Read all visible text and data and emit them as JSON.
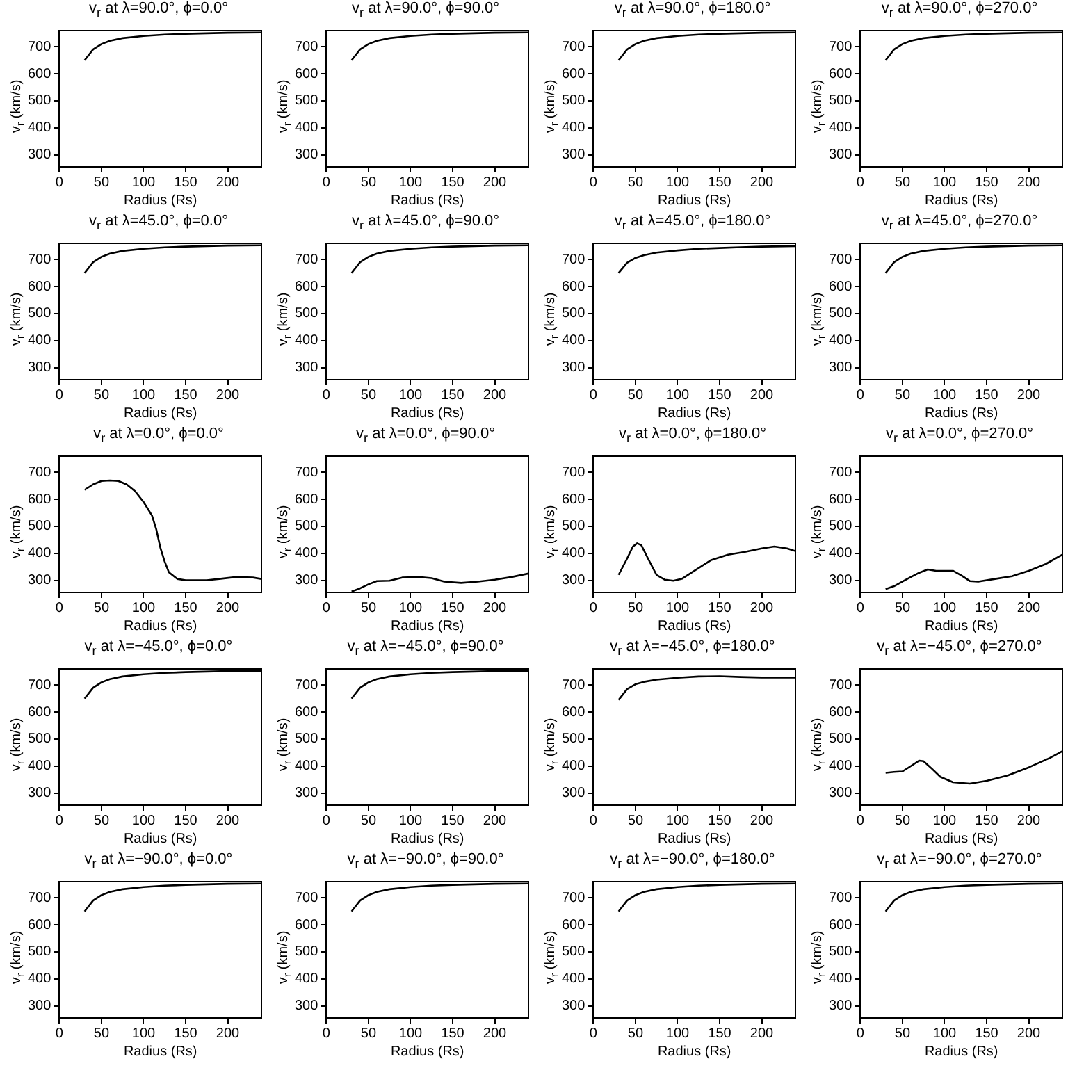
{
  "chart_data": [
    {
      "type": "line",
      "title": "v$_{r}$ at λ=90.0°, ϕ=0.0°",
      "xlabel": "Radius (Rs)",
      "ylabel": "v$_{r}$ (km/s)",
      "xlim": [
        0,
        240
      ],
      "ylim": [
        255,
        760
      ],
      "xticks": [
        0,
        50,
        100,
        150,
        200
      ],
      "yticks": [
        300,
        400,
        500,
        600,
        700
      ],
      "marker": "none",
      "x": [
        30,
        40,
        50,
        60,
        75,
        100,
        125,
        150,
        175,
        200,
        240
      ],
      "series": [
        {
          "color": "#000000",
          "values": [
            650,
            690,
            710,
            722,
            732,
            740,
            745,
            748,
            750,
            752,
            753
          ]
        }
      ]
    },
    {
      "type": "line",
      "title": "v$_{r}$ at λ=90.0°, ϕ=90.0°",
      "xlabel": "Radius (Rs)",
      "ylabel": "v$_{r}$ (km/s)",
      "xlim": [
        0,
        240
      ],
      "ylim": [
        255,
        760
      ],
      "xticks": [
        0,
        50,
        100,
        150,
        200
      ],
      "yticks": [
        300,
        400,
        500,
        600,
        700
      ],
      "marker": "none",
      "x": [
        30,
        40,
        50,
        60,
        75,
        100,
        125,
        150,
        175,
        200,
        240
      ],
      "series": [
        {
          "color": "#000000",
          "values": [
            650,
            690,
            710,
            722,
            732,
            740,
            745,
            748,
            750,
            752,
            753
          ]
        }
      ]
    },
    {
      "type": "line",
      "title": "v$_{r}$ at λ=90.0°, ϕ=180.0°",
      "xlabel": "Radius (Rs)",
      "ylabel": "v$_{r}$ (km/s)",
      "xlim": [
        0,
        240
      ],
      "ylim": [
        255,
        760
      ],
      "xticks": [
        0,
        50,
        100,
        150,
        200
      ],
      "yticks": [
        300,
        400,
        500,
        600,
        700
      ],
      "marker": "none",
      "x": [
        30,
        40,
        50,
        60,
        75,
        100,
        125,
        150,
        175,
        200,
        240
      ],
      "series": [
        {
          "color": "#000000",
          "values": [
            650,
            690,
            710,
            722,
            732,
            740,
            745,
            748,
            750,
            752,
            753
          ]
        }
      ]
    },
    {
      "type": "line",
      "title": "v$_{r}$ at λ=90.0°, ϕ=270.0°",
      "xlabel": "Radius (Rs)",
      "ylabel": "v$_{r}$ (km/s)",
      "xlim": [
        0,
        240
      ],
      "ylim": [
        255,
        760
      ],
      "xticks": [
        0,
        50,
        100,
        150,
        200
      ],
      "yticks": [
        300,
        400,
        500,
        600,
        700
      ],
      "marker": "none",
      "x": [
        30,
        40,
        50,
        60,
        75,
        100,
        125,
        150,
        175,
        200,
        240
      ],
      "series": [
        {
          "color": "#000000",
          "values": [
            650,
            690,
            710,
            722,
            732,
            740,
            745,
            748,
            750,
            752,
            753
          ]
        }
      ]
    },
    {
      "type": "line",
      "title": "v$_{r}$ at λ=45.0°, ϕ=0.0°",
      "xlabel": "Radius (Rs)",
      "ylabel": "v$_{r}$ (km/s)",
      "xlim": [
        0,
        240
      ],
      "ylim": [
        255,
        760
      ],
      "xticks": [
        0,
        50,
        100,
        150,
        200
      ],
      "yticks": [
        300,
        400,
        500,
        600,
        700
      ],
      "marker": "none",
      "x": [
        30,
        40,
        50,
        60,
        75,
        100,
        125,
        150,
        175,
        200,
        240
      ],
      "series": [
        {
          "color": "#000000",
          "values": [
            650,
            690,
            710,
            722,
            732,
            740,
            745,
            748,
            750,
            752,
            753
          ]
        }
      ]
    },
    {
      "type": "line",
      "title": "v$_{r}$ at λ=45.0°, ϕ=90.0°",
      "xlabel": "Radius (Rs)",
      "ylabel": "v$_{r}$ (km/s)",
      "xlim": [
        0,
        240
      ],
      "ylim": [
        255,
        760
      ],
      "xticks": [
        0,
        50,
        100,
        150,
        200
      ],
      "yticks": [
        300,
        400,
        500,
        600,
        700
      ],
      "marker": "none",
      "x": [
        30,
        40,
        50,
        60,
        75,
        100,
        125,
        150,
        175,
        200,
        240
      ],
      "series": [
        {
          "color": "#000000",
          "values": [
            650,
            690,
            710,
            722,
            732,
            740,
            745,
            748,
            750,
            752,
            753
          ]
        }
      ]
    },
    {
      "type": "line",
      "title": "v$_{r}$ at λ=45.0°, ϕ=180.0°",
      "xlabel": "Radius (Rs)",
      "ylabel": "v$_{r}$ (km/s)",
      "xlim": [
        0,
        240
      ],
      "ylim": [
        255,
        760
      ],
      "xticks": [
        0,
        50,
        100,
        150,
        200
      ],
      "yticks": [
        300,
        400,
        500,
        600,
        700
      ],
      "marker": "none",
      "x": [
        30,
        40,
        50,
        60,
        75,
        100,
        125,
        150,
        175,
        200,
        240
      ],
      "series": [
        {
          "color": "#000000",
          "values": [
            650,
            688,
            706,
            716,
            726,
            734,
            740,
            743,
            746,
            748,
            750
          ]
        }
      ]
    },
    {
      "type": "line",
      "title": "v$_{r}$ at λ=45.0°, ϕ=270.0°",
      "xlabel": "Radius (Rs)",
      "ylabel": "v$_{r}$ (km/s)",
      "xlim": [
        0,
        240
      ],
      "ylim": [
        255,
        760
      ],
      "xticks": [
        0,
        50,
        100,
        150,
        200
      ],
      "yticks": [
        300,
        400,
        500,
        600,
        700
      ],
      "marker": "none",
      "x": [
        30,
        40,
        50,
        60,
        75,
        100,
        125,
        150,
        175,
        200,
        240
      ],
      "series": [
        {
          "color": "#000000",
          "values": [
            650,
            690,
            710,
            722,
            732,
            740,
            745,
            748,
            750,
            752,
            753
          ]
        }
      ]
    },
    {
      "type": "line",
      "title": "v$_{r}$ at λ=0.0°, ϕ=0.0°",
      "xlabel": "Radius (Rs)",
      "ylabel": "v$_{r}$ (km/s)",
      "xlim": [
        0,
        240
      ],
      "ylim": [
        255,
        760
      ],
      "xticks": [
        0,
        50,
        100,
        150,
        200
      ],
      "yticks": [
        300,
        400,
        500,
        600,
        700
      ],
      "marker": "none",
      "x": [
        30,
        40,
        50,
        60,
        70,
        80,
        90,
        100,
        110,
        115,
        120,
        125,
        130,
        140,
        150,
        175,
        190,
        210,
        230,
        240
      ],
      "series": [
        {
          "color": "#000000",
          "values": [
            635,
            655,
            668,
            670,
            668,
            655,
            630,
            590,
            540,
            490,
            420,
            370,
            330,
            305,
            300,
            300,
            305,
            312,
            310,
            305
          ]
        }
      ]
    },
    {
      "type": "line",
      "title": "v$_{r}$ at λ=0.0°, ϕ=90.0°",
      "xlabel": "Radius (Rs)",
      "ylabel": "v$_{r}$ (km/s)",
      "xlim": [
        0,
        240
      ],
      "ylim": [
        255,
        760
      ],
      "xticks": [
        0,
        50,
        100,
        150,
        200
      ],
      "yticks": [
        300,
        400,
        500,
        600,
        700
      ],
      "marker": "none",
      "x": [
        30,
        40,
        50,
        60,
        75,
        90,
        110,
        125,
        140,
        160,
        180,
        200,
        220,
        240
      ],
      "series": [
        {
          "color": "#000000",
          "values": [
            258,
            270,
            285,
            297,
            298,
            310,
            312,
            308,
            295,
            290,
            295,
            302,
            312,
            325
          ]
        }
      ]
    },
    {
      "type": "line",
      "title": "v$_{r}$ at λ=0.0°, ϕ=180.0°",
      "xlabel": "Radius (Rs)",
      "ylabel": "v$_{r}$ (km/s)",
      "xlim": [
        0,
        240
      ],
      "ylim": [
        255,
        760
      ],
      "xticks": [
        0,
        50,
        100,
        150,
        200
      ],
      "yticks": [
        300,
        400,
        500,
        600,
        700
      ],
      "marker": "none",
      "x": [
        30,
        40,
        47,
        52,
        57,
        65,
        75,
        85,
        95,
        105,
        120,
        140,
        160,
        180,
        200,
        215,
        230,
        240
      ],
      "series": [
        {
          "color": "#000000",
          "values": [
            320,
            380,
            425,
            437,
            430,
            380,
            320,
            302,
            298,
            305,
            335,
            375,
            395,
            405,
            418,
            425,
            418,
            408
          ]
        }
      ]
    },
    {
      "type": "line",
      "title": "v$_{r}$ at λ=0.0°, ϕ=270.0°",
      "xlabel": "Radius (Rs)",
      "ylabel": "v$_{r}$ (km/s)",
      "xlim": [
        0,
        240
      ],
      "ylim": [
        255,
        760
      ],
      "xticks": [
        0,
        50,
        100,
        150,
        200
      ],
      "yticks": [
        300,
        400,
        500,
        600,
        700
      ],
      "marker": "none",
      "x": [
        30,
        40,
        50,
        60,
        70,
        80,
        90,
        110,
        120,
        130,
        140,
        160,
        180,
        200,
        220,
        240
      ],
      "series": [
        {
          "color": "#000000",
          "values": [
            267,
            278,
            295,
            312,
            328,
            340,
            335,
            335,
            318,
            297,
            295,
            305,
            315,
            335,
            360,
            395
          ]
        }
      ]
    },
    {
      "type": "line",
      "title": "v$_{r}$ at λ=−45.0°, ϕ=0.0°",
      "xlabel": "Radius (Rs)",
      "ylabel": "v$_{r}$ (km/s)",
      "xlim": [
        0,
        240
      ],
      "ylim": [
        255,
        760
      ],
      "xticks": [
        0,
        50,
        100,
        150,
        200
      ],
      "yticks": [
        300,
        400,
        500,
        600,
        700
      ],
      "marker": "none",
      "x": [
        30,
        40,
        50,
        60,
        75,
        100,
        125,
        150,
        175,
        200,
        240
      ],
      "series": [
        {
          "color": "#000000",
          "values": [
            650,
            690,
            710,
            722,
            732,
            740,
            745,
            748,
            750,
            752,
            753
          ]
        }
      ]
    },
    {
      "type": "line",
      "title": "v$_{r}$ at λ=−45.0°, ϕ=90.0°",
      "xlabel": "Radius (Rs)",
      "ylabel": "v$_{r}$ (km/s)",
      "xlim": [
        0,
        240
      ],
      "ylim": [
        255,
        760
      ],
      "xticks": [
        0,
        50,
        100,
        150,
        200
      ],
      "yticks": [
        300,
        400,
        500,
        600,
        700
      ],
      "marker": "none",
      "x": [
        30,
        40,
        50,
        60,
        75,
        100,
        125,
        150,
        175,
        200,
        240
      ],
      "series": [
        {
          "color": "#000000",
          "values": [
            650,
            690,
            710,
            722,
            732,
            740,
            745,
            748,
            750,
            752,
            753
          ]
        }
      ]
    },
    {
      "type": "line",
      "title": "v$_{r}$ at λ=−45.0°, ϕ=180.0°",
      "xlabel": "Radius (Rs)",
      "ylabel": "v$_{r}$ (km/s)",
      "xlim": [
        0,
        240
      ],
      "ylim": [
        255,
        760
      ],
      "xticks": [
        0,
        50,
        100,
        150,
        200
      ],
      "yticks": [
        300,
        400,
        500,
        600,
        700
      ],
      "marker": "none",
      "x": [
        30,
        40,
        50,
        60,
        75,
        100,
        125,
        150,
        175,
        200,
        240
      ],
      "series": [
        {
          "color": "#000000",
          "values": [
            645,
            685,
            703,
            712,
            720,
            727,
            732,
            733,
            730,
            728,
            728
          ]
        }
      ]
    },
    {
      "type": "line",
      "title": "v$_{r}$ at λ=−45.0°, ϕ=270.0°",
      "xlabel": "Radius (Rs)",
      "ylabel": "v$_{r}$ (km/s)",
      "xlim": [
        0,
        240
      ],
      "ylim": [
        255,
        760
      ],
      "xticks": [
        0,
        50,
        100,
        150,
        200
      ],
      "yticks": [
        300,
        400,
        500,
        600,
        700
      ],
      "marker": "none",
      "x": [
        30,
        40,
        50,
        60,
        70,
        75,
        85,
        95,
        110,
        130,
        150,
        175,
        200,
        225,
        240
      ],
      "series": [
        {
          "color": "#000000",
          "values": [
            375,
            378,
            380,
            400,
            420,
            418,
            390,
            360,
            340,
            335,
            345,
            365,
            395,
            430,
            455
          ]
        }
      ]
    },
    {
      "type": "line",
      "title": "v$_{r}$ at λ=−90.0°, ϕ=0.0°",
      "xlabel": "Radius (Rs)",
      "ylabel": "v$_{r}$ (km/s)",
      "xlim": [
        0,
        240
      ],
      "ylim": [
        255,
        760
      ],
      "xticks": [
        0,
        50,
        100,
        150,
        200
      ],
      "yticks": [
        300,
        400,
        500,
        600,
        700
      ],
      "marker": "none",
      "x": [
        30,
        40,
        50,
        60,
        75,
        100,
        125,
        150,
        175,
        200,
        240
      ],
      "series": [
        {
          "color": "#000000",
          "values": [
            650,
            690,
            710,
            722,
            732,
            740,
            745,
            748,
            750,
            752,
            753
          ]
        }
      ]
    },
    {
      "type": "line",
      "title": "v$_{r}$ at λ=−90.0°, ϕ=90.0°",
      "xlabel": "Radius (Rs)",
      "ylabel": "v$_{r}$ (km/s)",
      "xlim": [
        0,
        240
      ],
      "ylim": [
        255,
        760
      ],
      "xticks": [
        0,
        50,
        100,
        150,
        200
      ],
      "yticks": [
        300,
        400,
        500,
        600,
        700
      ],
      "marker": "none",
      "x": [
        30,
        40,
        50,
        60,
        75,
        100,
        125,
        150,
        175,
        200,
        240
      ],
      "series": [
        {
          "color": "#000000",
          "values": [
            650,
            690,
            710,
            722,
            732,
            740,
            745,
            748,
            750,
            752,
            753
          ]
        }
      ]
    },
    {
      "type": "line",
      "title": "v$_{r}$ at λ=−90.0°, ϕ=180.0°",
      "xlabel": "Radius (Rs)",
      "ylabel": "v$_{r}$ (km/s)",
      "xlim": [
        0,
        240
      ],
      "ylim": [
        255,
        760
      ],
      "xticks": [
        0,
        50,
        100,
        150,
        200
      ],
      "yticks": [
        300,
        400,
        500,
        600,
        700
      ],
      "marker": "none",
      "x": [
        30,
        40,
        50,
        60,
        75,
        100,
        125,
        150,
        175,
        200,
        240
      ],
      "series": [
        {
          "color": "#000000",
          "values": [
            650,
            690,
            710,
            722,
            732,
            740,
            745,
            748,
            750,
            752,
            753
          ]
        }
      ]
    },
    {
      "type": "line",
      "title": "v$_{r}$ at λ=−90.0°, ϕ=270.0°",
      "xlabel": "Radius (Rs)",
      "ylabel": "v$_{r}$ (km/s)",
      "xlim": [
        0,
        240
      ],
      "ylim": [
        255,
        760
      ],
      "xticks": [
        0,
        50,
        100,
        150,
        200
      ],
      "yticks": [
        300,
        400,
        500,
        600,
        700
      ],
      "marker": "none",
      "x": [
        30,
        40,
        50,
        60,
        75,
        100,
        125,
        150,
        175,
        200,
        240
      ],
      "series": [
        {
          "color": "#000000",
          "values": [
            650,
            690,
            710,
            722,
            732,
            740,
            745,
            748,
            750,
            752,
            753
          ]
        }
      ]
    }
  ]
}
